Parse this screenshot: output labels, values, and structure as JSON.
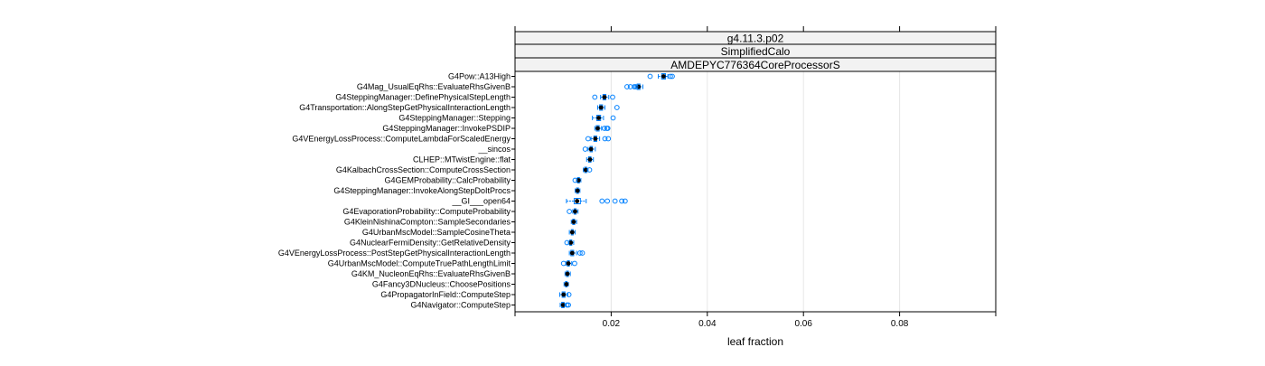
{
  "chart_data": {
    "type": "boxplot",
    "strips": [
      "g4.11.3.p02",
      "SimplifiedCalo",
      "AMDEPYC776364CoreProcessorS"
    ],
    "xlabel": "leaf fraction",
    "ylabel": "",
    "xlim": [
      0.0,
      0.1
    ],
    "x_ticks": [
      0.02,
      0.04,
      0.06,
      0.08
    ],
    "x_tick_labels": [
      "0.02",
      "0.04",
      "0.06",
      "0.08"
    ],
    "grid": true,
    "categories": [
      "G4Pow::A13High",
      "G4Mag_UsualEqRhs::EvaluateRhsGivenB",
      "G4SteppingManager::DefinePhysicalStepLength",
      "G4Transportation::AlongStepGetPhysicalInteractionLength",
      "G4SteppingManager::Stepping",
      "G4SteppingManager::InvokePSDIP",
      "G4VEnergyLossProcess::ComputeLambdaForScaledEnergy",
      "__sincos",
      "CLHEP::MTwistEngine::flat",
      "G4KalbachCrossSection::ComputeCrossSection",
      "G4GEMProbability::CalcProbability",
      "G4SteppingManager::InvokeAlongStepDoItProcs",
      "__GI___open64",
      "G4EvaporationProbability::ComputeProbability",
      "G4KleinNishinaCompton::SampleSecondaries",
      "G4UrbanMscModel::SampleCosineTheta",
      "G4NuclearFermiDensity::GetRelativeDensity",
      "G4VEnergyLossProcess::PostStepGetPhysicalInteractionLength",
      "G4UrbanMscModel::ComputeTruePathLengthLimit",
      "G4KM_NucleonEqRhs::EvaluateRhsGivenB",
      "G4Fancy3DNucleus::ChoosePositions",
      "G4PropagatorInField::ComputeStep",
      "G4Navigator::ComputeStep"
    ],
    "boxes": [
      {
        "wlo": 0.0298,
        "q1": 0.0305,
        "med": 0.0309,
        "q3": 0.0313,
        "whi": 0.0318,
        "outliers": [
          0.0281,
          0.0323,
          0.0327
        ]
      },
      {
        "wlo": 0.025,
        "q1": 0.0254,
        "med": 0.0257,
        "q3": 0.026,
        "whi": 0.0266,
        "outliers": [
          0.0233,
          0.024,
          0.0248,
          0.0251
        ]
      },
      {
        "wlo": 0.0178,
        "q1": 0.0183,
        "med": 0.0186,
        "q3": 0.0189,
        "whi": 0.0195,
        "outliers": [
          0.0166,
          0.0203
        ]
      },
      {
        "wlo": 0.0172,
        "q1": 0.0176,
        "med": 0.0179,
        "q3": 0.0182,
        "whi": 0.0187,
        "outliers": [
          0.0212
        ]
      },
      {
        "wlo": 0.0161,
        "q1": 0.017,
        "med": 0.0174,
        "q3": 0.0178,
        "whi": 0.0184,
        "outliers": [
          0.0204
        ]
      },
      {
        "wlo": 0.0166,
        "q1": 0.0169,
        "med": 0.0172,
        "q3": 0.0175,
        "whi": 0.018,
        "outliers": [
          0.0186,
          0.0191,
          0.0193
        ]
      },
      {
        "wlo": 0.0158,
        "q1": 0.0164,
        "med": 0.0167,
        "q3": 0.017,
        "whi": 0.0176,
        "outliers": [
          0.0152,
          0.0187,
          0.0194
        ]
      },
      {
        "wlo": 0.0152,
        "q1": 0.0156,
        "med": 0.0158,
        "q3": 0.0161,
        "whi": 0.0167,
        "outliers": [
          0.0146
        ]
      },
      {
        "wlo": 0.0149,
        "q1": 0.0153,
        "med": 0.0156,
        "q3": 0.0158,
        "whi": 0.0163,
        "outliers": []
      },
      {
        "wlo": 0.0142,
        "q1": 0.0145,
        "med": 0.0147,
        "q3": 0.0149,
        "whi": 0.0152,
        "outliers": [
          0.0155
        ]
      },
      {
        "wlo": 0.0128,
        "q1": 0.013,
        "med": 0.0132,
        "q3": 0.0134,
        "whi": 0.0137,
        "outliers": [
          0.0125
        ]
      },
      {
        "wlo": 0.0125,
        "q1": 0.0128,
        "med": 0.013,
        "q3": 0.0132,
        "whi": 0.0135,
        "outliers": []
      },
      {
        "wlo": 0.0107,
        "q1": 0.0123,
        "med": 0.0129,
        "q3": 0.0136,
        "whi": 0.0148,
        "outliers": [
          0.0181,
          0.0192,
          0.0208,
          0.0222,
          0.0229
        ]
      },
      {
        "wlo": 0.012,
        "q1": 0.0123,
        "med": 0.0125,
        "q3": 0.0127,
        "whi": 0.0131,
        "outliers": [
          0.0113
        ]
      },
      {
        "wlo": 0.0117,
        "q1": 0.012,
        "med": 0.0122,
        "q3": 0.0124,
        "whi": 0.0128,
        "outliers": []
      },
      {
        "wlo": 0.0113,
        "q1": 0.0117,
        "med": 0.0119,
        "q3": 0.0121,
        "whi": 0.0125,
        "outliers": []
      },
      {
        "wlo": 0.0111,
        "q1": 0.0114,
        "med": 0.0116,
        "q3": 0.0118,
        "whi": 0.0122,
        "outliers": [
          0.0108
        ]
      },
      {
        "wlo": 0.0113,
        "q1": 0.0116,
        "med": 0.0119,
        "q3": 0.0122,
        "whi": 0.0128,
        "outliers": [
          0.0135,
          0.014
        ]
      },
      {
        "wlo": 0.0106,
        "q1": 0.0109,
        "med": 0.0111,
        "q3": 0.0113,
        "whi": 0.0118,
        "outliers": [
          0.0101,
          0.0124
        ]
      },
      {
        "wlo": 0.0104,
        "q1": 0.0107,
        "med": 0.0109,
        "q3": 0.0111,
        "whi": 0.0115,
        "outliers": []
      },
      {
        "wlo": 0.0102,
        "q1": 0.0105,
        "med": 0.0107,
        "q3": 0.0108,
        "whi": 0.0111,
        "outliers": []
      },
      {
        "wlo": 0.0093,
        "q1": 0.0098,
        "med": 0.0101,
        "q3": 0.0104,
        "whi": 0.011,
        "outliers": [
          0.0112
        ]
      },
      {
        "wlo": 0.0094,
        "q1": 0.0097,
        "med": 0.01,
        "q3": 0.0102,
        "whi": 0.0106,
        "outliers": [
          0.0108,
          0.0111
        ]
      }
    ]
  }
}
